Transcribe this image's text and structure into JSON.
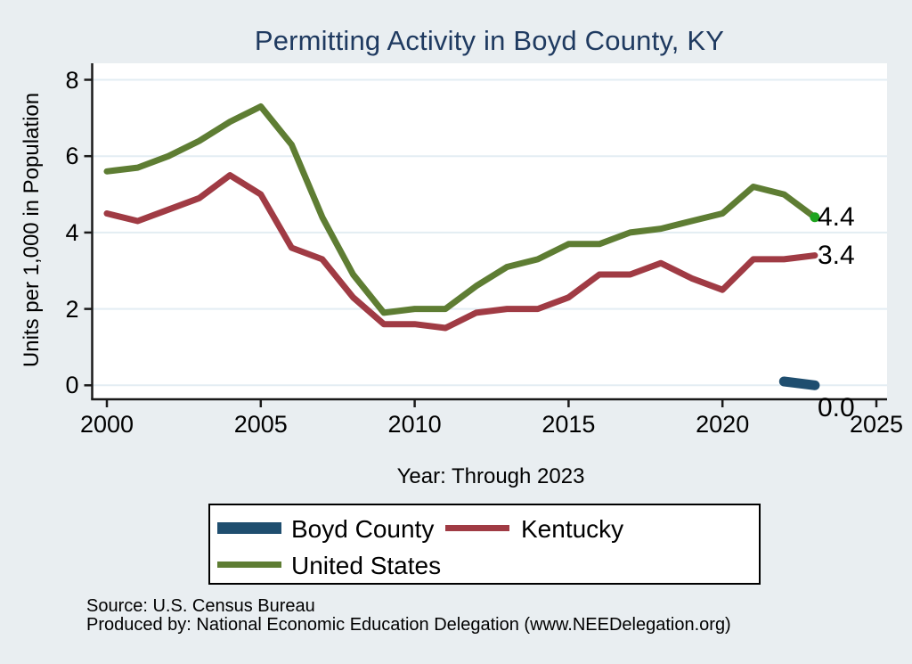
{
  "title": {
    "text": "Permitting Activity in Boyd County, KY",
    "color": "#1f3a60"
  },
  "axes": {
    "ylabel": "Units per 1,000 in Population",
    "xlabel": "Year: Through 2023",
    "x_ticks": [
      2000,
      2005,
      2010,
      2015,
      2020,
      2025
    ],
    "y_ticks": [
      0,
      2,
      4,
      6,
      8
    ]
  },
  "chart_data": {
    "type": "line",
    "title": "Permitting Activity in Boyd County, KY",
    "xlabel": "Year: Through 2023",
    "ylabel": "Units per 1,000 in Population",
    "xlim": [
      1999.5,
      2025.3
    ],
    "ylim": [
      0,
      8
    ],
    "grid": true,
    "legend_position": "bottom",
    "series": [
      {
        "name": "Boyd County",
        "color": "#1f4e6f",
        "line_width": 11,
        "x": [
          2022,
          2023
        ],
        "values": [
          0.1,
          0.0
        ],
        "end_label": "0.0"
      },
      {
        "name": "Kentucky",
        "color": "#a03b44",
        "line_width": 7,
        "x": [
          2000,
          2001,
          2002,
          2003,
          2004,
          2005,
          2006,
          2007,
          2008,
          2009,
          2010,
          2011,
          2012,
          2013,
          2014,
          2015,
          2016,
          2017,
          2018,
          2019,
          2020,
          2021,
          2022,
          2023
        ],
        "values": [
          4.5,
          4.3,
          4.6,
          4.9,
          5.5,
          5.0,
          3.6,
          3.3,
          2.3,
          1.6,
          1.6,
          1.5,
          1.9,
          2.0,
          2.0,
          2.3,
          2.9,
          2.9,
          3.2,
          2.8,
          2.5,
          3.3,
          3.3,
          3.4
        ],
        "end_label": "3.4"
      },
      {
        "name": "United States",
        "color": "#5e7d33",
        "line_width": 7,
        "x": [
          2000,
          2001,
          2002,
          2003,
          2004,
          2005,
          2006,
          2007,
          2008,
          2009,
          2010,
          2011,
          2012,
          2013,
          2014,
          2015,
          2016,
          2017,
          2018,
          2019,
          2020,
          2021,
          2022,
          2023
        ],
        "values": [
          5.6,
          5.7,
          6.0,
          6.4,
          6.9,
          7.3,
          6.3,
          4.4,
          2.9,
          1.9,
          2.0,
          2.0,
          2.6,
          3.1,
          3.3,
          3.7,
          3.7,
          4.0,
          4.1,
          4.3,
          4.5,
          5.2,
          5.0,
          4.4
        ],
        "end_label": "4.4",
        "end_marker_color": "#1fa41f"
      }
    ]
  },
  "legend": {
    "entries": [
      {
        "label": "Boyd County",
        "color": "#1f4e6f"
      },
      {
        "label": "Kentucky",
        "color": "#a03b44"
      },
      {
        "label": "United States",
        "color": "#5e7d33"
      }
    ]
  },
  "footer": {
    "source": "Source: U.S. Census Bureau",
    "produced_by": "Produced by: National Economic Education Delegation (www.NEEDelegation.org)"
  },
  "colors": {
    "background": "#e9eef1",
    "plot_background": "#ffffff",
    "gridline": "#e3edf3",
    "axis": "#1a1a1a",
    "title": "#1f3a60"
  }
}
